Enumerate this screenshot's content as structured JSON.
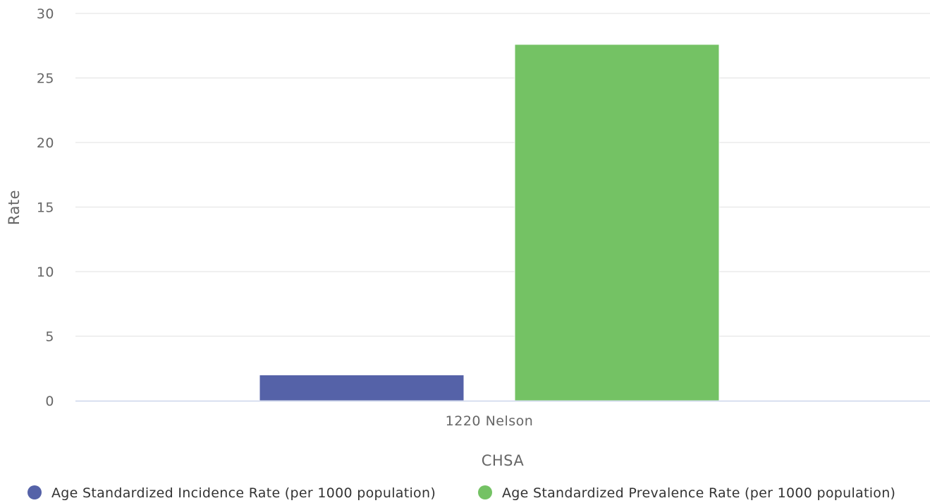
{
  "chart_data": {
    "type": "bar",
    "title": "",
    "xlabel": "CHSA",
    "ylabel": "Rate",
    "categories": [
      "1220 Nelson"
    ],
    "ylim": [
      0,
      30
    ],
    "yticks": [
      "0",
      "5",
      "10",
      "15",
      "20",
      "25",
      "30"
    ],
    "grid": true,
    "legend_position": "bottom",
    "series": [
      {
        "name": "Age Standardized Incidence Rate (per 1000 population)",
        "color": "#5562a8",
        "values": [
          2.0
        ]
      },
      {
        "name": "Age Standardized Prevalence Rate (per 1000 population)",
        "color": "#74c264",
        "values": [
          27.6
        ]
      }
    ]
  }
}
